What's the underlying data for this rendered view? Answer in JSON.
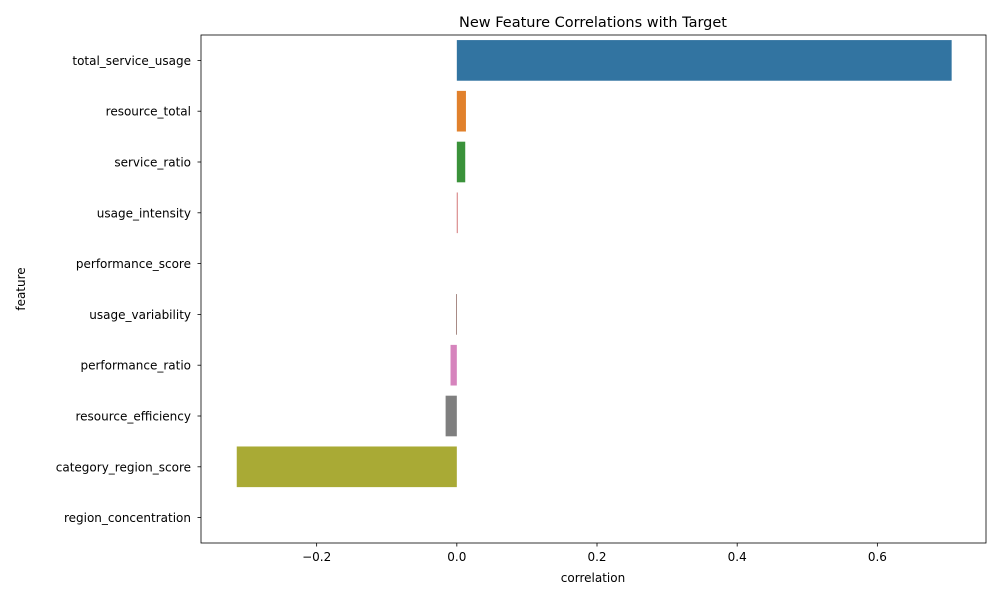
{
  "chart_data": {
    "type": "bar",
    "orientation": "horizontal",
    "title": "New Feature Correlations with Target",
    "xlabel": "correlation",
    "ylabel": "feature",
    "xlim": [
      -0.365,
      0.755
    ],
    "xticks": [
      -0.2,
      0.0,
      0.2,
      0.4,
      0.6
    ],
    "xtick_labels": [
      "−0.2",
      "0.0",
      "0.2",
      "0.4",
      "0.6"
    ],
    "grid": false,
    "legend": "none",
    "categories": [
      "total_service_usage",
      "resource_total",
      "service_ratio",
      "usage_intensity",
      "performance_score",
      "usage_variability",
      "performance_ratio",
      "resource_efficiency",
      "category_region_score",
      "region_concentration"
    ],
    "values": [
      0.706,
      0.013,
      0.012,
      0.001,
      0.0,
      -0.001,
      -0.009,
      -0.016,
      -0.314,
      0.0
    ],
    "colors": [
      "#3274a1",
      "#e1812c",
      "#3a923a",
      "#c03d3e",
      "#9372b2",
      "#845b53",
      "#d684bd",
      "#7f7f7f",
      "#a9aa35",
      "#2eb0c9"
    ]
  }
}
